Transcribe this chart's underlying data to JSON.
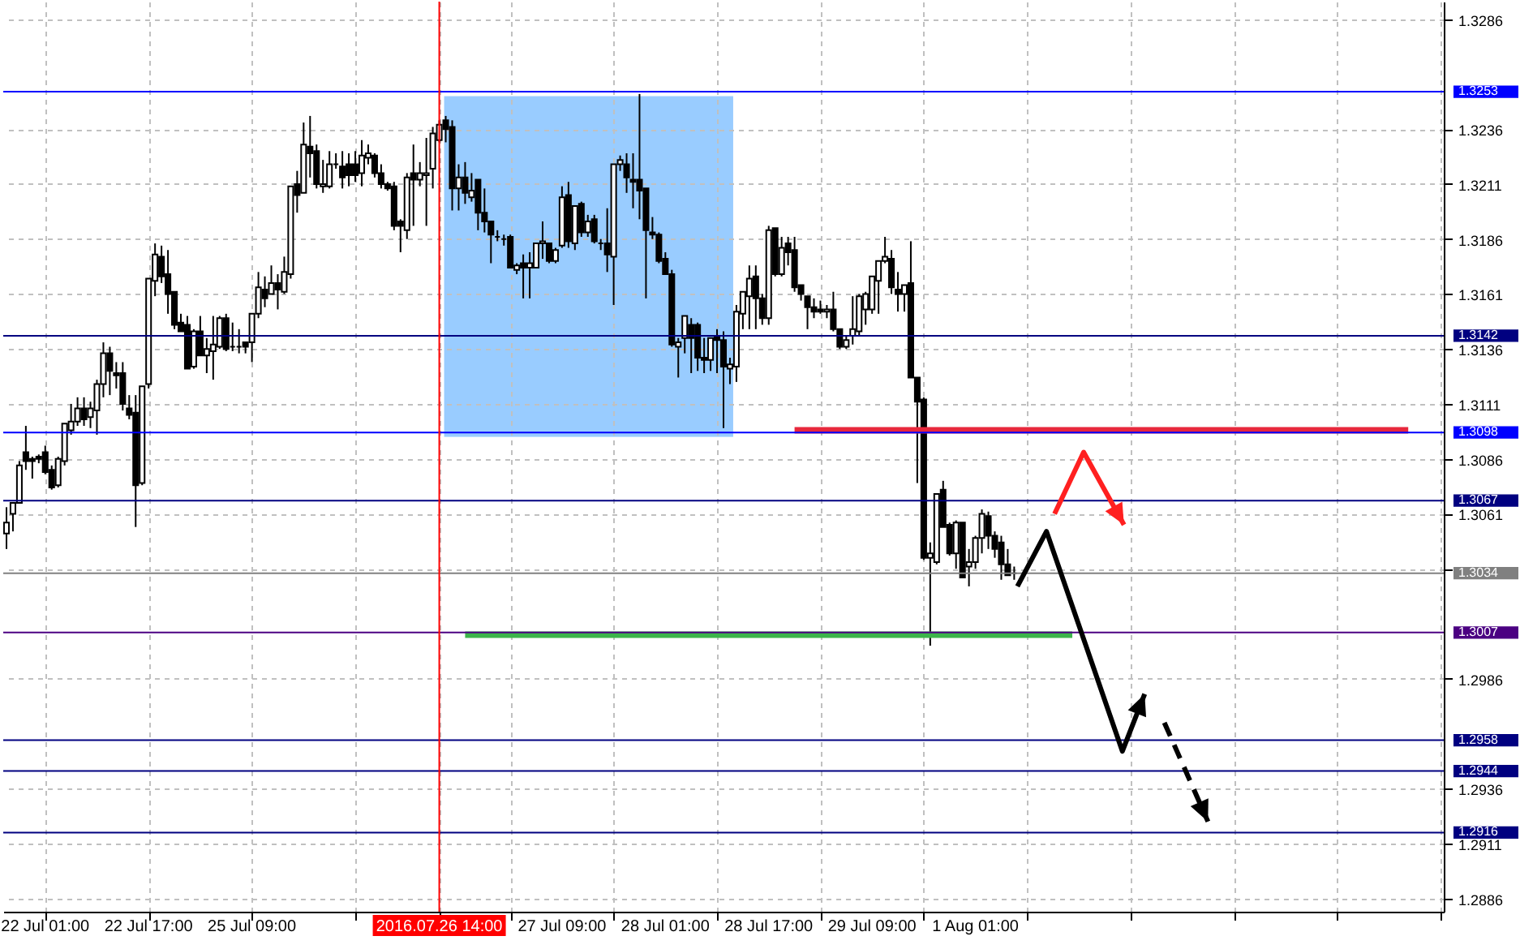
{
  "chart_data": {
    "type": "candlestick",
    "categories": [
      null,
      null,
      null,
      null,
      null,
      null,
      "22 Jul 01:00",
      null,
      null,
      null,
      null,
      null,
      null,
      null,
      null,
      null,
      null,
      null,
      null,
      null,
      null,
      null,
      "22 Jul 17:00",
      null,
      null,
      null,
      null,
      null,
      null,
      null,
      null,
      null,
      null,
      null,
      null,
      null,
      null,
      null,
      "25 Jul 09:00",
      null,
      null,
      null,
      null,
      null,
      null,
      null,
      null,
      null,
      null,
      null,
      null,
      null,
      null,
      null,
      null,
      null,
      null,
      null,
      null,
      null,
      null,
      null,
      null,
      null,
      null,
      null,
      null,
      "2016.07.26 14:00",
      null,
      null,
      null,
      null,
      null,
      null,
      null,
      null,
      null,
      null,
      null,
      null,
      null,
      null,
      null,
      null,
      null,
      null,
      "27 Jul 09:00",
      null,
      null,
      null,
      null,
      null,
      null,
      null,
      null,
      null,
      null,
      null,
      null,
      null,
      null,
      null,
      "28 Jul 01:00",
      null,
      null,
      null,
      null,
      null,
      null,
      null,
      null,
      null,
      null,
      null,
      null,
      null,
      null,
      null,
      "28 Jul 17:00",
      null,
      null,
      null,
      null,
      null,
      null,
      null,
      null,
      null,
      null,
      null,
      null,
      null,
      null,
      null,
      "29 Jul 09:00",
      null,
      null,
      null,
      null,
      null,
      null,
      null,
      null,
      null,
      null,
      null,
      null,
      null,
      null,
      null,
      "1 Aug 01:00",
      null,
      null,
      null,
      null,
      null,
      null,
      null,
      null,
      null,
      null,
      null,
      null,
      null,
      null,
      null,
      null,
      null,
      null,
      null,
      null,
      null,
      null,
      null,
      null,
      null,
      null,
      null,
      null,
      null,
      null,
      null,
      null,
      null,
      null,
      null,
      null,
      null,
      null,
      null,
      null,
      null,
      null,
      null,
      null,
      null,
      null,
      null,
      null,
      null,
      null,
      null,
      null,
      null,
      null,
      null,
      null,
      null,
      null,
      null,
      null,
      null,
      null,
      null,
      null,
      null,
      null,
      null,
      null,
      null,
      null,
      null,
      null
    ],
    "ohlc": [
      [
        1.3052,
        1.3064,
        1.3045,
        1.3057
      ],
      [
        1.3061,
        1.3066,
        1.3053,
        1.3066
      ],
      [
        1.3066,
        1.3085,
        1.3066,
        1.3083
      ],
      [
        1.3089,
        1.3101,
        1.3081,
        1.3085
      ],
      [
        1.3086,
        1.3087,
        1.3077,
        1.3085
      ],
      [
        1.3087,
        1.3088,
        1.3084,
        1.3086
      ],
      [
        1.3089,
        1.3092,
        1.3079,
        1.308
      ],
      [
        1.3081,
        1.3083,
        1.3072,
        1.3073
      ],
      [
        1.3074,
        1.3087,
        1.3073,
        1.3086
      ],
      [
        1.3085,
        1.3102,
        1.3083,
        1.3102
      ],
      [
        1.3099,
        1.3111,
        1.3097,
        1.3103
      ],
      [
        1.3103,
        1.3114,
        1.3101,
        1.3109
      ],
      [
        1.3109,
        1.3114,
        1.3101,
        1.3104
      ],
      [
        1.3105,
        1.3112,
        1.31,
        1.3109
      ],
      [
        1.3108,
        1.3122,
        1.3097,
        1.312
      ],
      [
        1.312,
        1.3139,
        1.3114,
        1.3134
      ],
      [
        1.3134,
        1.3137,
        1.3115,
        1.3126
      ],
      [
        1.3125,
        1.313,
        1.3118,
        1.3124
      ],
      [
        1.3125,
        1.313,
        1.3108,
        1.3111
      ],
      [
        1.3109,
        1.3115,
        1.3104,
        1.3106
      ],
      [
        1.3107,
        1.3115,
        1.3055,
        1.3074
      ],
      [
        1.3075,
        1.3119,
        1.3074,
        1.3119
      ],
      [
        1.312,
        1.3168,
        1.3118,
        1.3168
      ],
      [
        1.3167,
        1.3184,
        1.316,
        1.3179
      ],
      [
        1.3178,
        1.3183,
        1.3166,
        1.3169
      ],
      [
        1.317,
        1.3181,
        1.3152,
        1.3161
      ],
      [
        1.3162,
        1.3162,
        1.3145,
        1.3147
      ],
      [
        1.3148,
        1.3152,
        1.3144,
        1.3144
      ],
      [
        1.3147,
        1.3151,
        1.3127,
        1.3127
      ],
      [
        1.3128,
        1.3145,
        1.3127,
        1.3144
      ],
      [
        1.3144,
        1.3151,
        1.3133,
        1.3133
      ],
      [
        1.3133,
        1.3141,
        1.3125,
        1.3136
      ],
      [
        1.3135,
        1.3151,
        1.3122,
        1.3138
      ],
      [
        1.3137,
        1.3151,
        1.3136,
        1.315
      ],
      [
        1.315,
        1.3152,
        1.3135,
        1.3136
      ],
      [
        1.3137,
        1.3148,
        1.3135,
        1.3137
      ],
      [
        1.3137,
        1.3145,
        1.3134,
        1.3137
      ],
      [
        1.3139,
        1.3139,
        1.3134,
        1.3137
      ],
      [
        1.3139,
        1.3152,
        1.313,
        1.3152
      ],
      [
        1.3152,
        1.3171,
        1.315,
        1.3164
      ],
      [
        1.3163,
        1.3169,
        1.3155,
        1.3159
      ],
      [
        1.3161,
        1.3174,
        1.3161,
        1.3166
      ],
      [
        1.3166,
        1.317,
        1.3154,
        1.3163
      ],
      [
        1.3162,
        1.3178,
        1.3161,
        1.3171
      ],
      [
        1.317,
        1.321,
        1.3168,
        1.321
      ],
      [
        1.3211,
        1.3217,
        1.3198,
        1.3206
      ],
      [
        1.3207,
        1.3239,
        1.3207,
        1.3229
      ],
      [
        1.3228,
        1.3242,
        1.3214,
        1.3225
      ],
      [
        1.3226,
        1.3229,
        1.3209,
        1.3211
      ],
      [
        1.321,
        1.3222,
        1.3207,
        1.3211
      ],
      [
        1.321,
        1.3226,
        1.3209,
        1.322
      ],
      [
        1.322,
        1.3225,
        1.3218,
        1.322
      ],
      [
        1.3219,
        1.3226,
        1.3209,
        1.3214
      ],
      [
        1.322,
        1.3225,
        1.321,
        1.3215
      ],
      [
        1.322,
        1.3226,
        1.3212,
        1.3215
      ],
      [
        1.3216,
        1.3231,
        1.321,
        1.3224
      ],
      [
        1.3223,
        1.3229,
        1.322,
        1.3225
      ],
      [
        1.3224,
        1.3225,
        1.3214,
        1.3216
      ],
      [
        1.3216,
        1.322,
        1.3209,
        1.3211
      ],
      [
        1.3211,
        1.3212,
        1.3208,
        1.3209
      ],
      [
        1.321,
        1.3212,
        1.319,
        1.3192
      ],
      [
        1.3194,
        1.3195,
        1.318,
        1.3192
      ],
      [
        1.319,
        1.3216,
        1.3186,
        1.3214
      ],
      [
        1.3216,
        1.3229,
        1.3192,
        1.3213
      ],
      [
        1.3213,
        1.3221,
        1.321,
        1.3216
      ],
      [
        1.3215,
        1.3232,
        1.3192,
        1.3216
      ],
      [
        1.3218,
        1.3237,
        1.3209,
        1.3234
      ],
      [
        1.3231,
        1.324,
        1.323,
        1.3238
      ],
      [
        1.324,
        1.3242,
        1.323,
        1.3236
      ],
      [
        1.3237,
        1.324,
        1.3199,
        1.3209
      ],
      [
        1.3209,
        1.322,
        1.3199,
        1.3214
      ],
      [
        1.3214,
        1.3221,
        1.3202,
        1.3207
      ],
      [
        1.3205,
        1.3216,
        1.3203,
        1.3208
      ],
      [
        1.3213,
        1.3213,
        1.319,
        1.3198
      ],
      [
        1.3198,
        1.3209,
        1.3189,
        1.3194
      ],
      [
        1.3194,
        1.3194,
        1.3175,
        1.3188
      ],
      [
        1.3187,
        1.319,
        1.3185,
        1.3187
      ],
      [
        1.3186,
        1.3188,
        1.3183,
        1.3186
      ],
      [
        1.3187,
        1.3188,
        1.3173,
        1.3173
      ],
      [
        1.3172,
        1.3175,
        1.317,
        1.3174
      ],
      [
        1.3175,
        1.3179,
        1.3159,
        1.3173
      ],
      [
        1.3173,
        1.318,
        1.3159,
        1.3175
      ],
      [
        1.3173,
        1.3184,
        1.3173,
        1.3184
      ],
      [
        1.3184,
        1.3194,
        1.3177,
        1.3185
      ],
      [
        1.3184,
        1.3184,
        1.3175,
        1.3176
      ],
      [
        1.3176,
        1.3182,
        1.3175,
        1.3181
      ],
      [
        1.3183,
        1.321,
        1.3182,
        1.3205
      ],
      [
        1.3206,
        1.3212,
        1.3182,
        1.3185
      ],
      [
        1.3184,
        1.3201,
        1.3181,
        1.3201
      ],
      [
        1.3202,
        1.3203,
        1.3187,
        1.3189
      ],
      [
        1.3189,
        1.3197,
        1.3187,
        1.3194
      ],
      [
        1.3195,
        1.3197,
        1.3184,
        1.3185
      ],
      [
        1.3184,
        1.3186,
        1.3181,
        1.3184
      ],
      [
        1.3184,
        1.32,
        1.3171,
        1.3179
      ],
      [
        1.3178,
        1.322,
        1.3156,
        1.322
      ],
      [
        1.322,
        1.3224,
        1.3217,
        1.3222
      ],
      [
        1.322,
        1.3225,
        1.3207,
        1.3214
      ],
      [
        1.3213,
        1.3225,
        1.32,
        1.3212
      ],
      [
        1.3213,
        1.3252,
        1.3195,
        1.3208
      ],
      [
        1.3209,
        1.3209,
        1.3159,
        1.319
      ],
      [
        1.3189,
        1.3196,
        1.3186,
        1.3188
      ],
      [
        1.3188,
        1.3189,
        1.3175,
        1.3176
      ],
      [
        1.3177,
        1.318,
        1.317,
        1.317
      ],
      [
        1.317,
        1.3172,
        1.3137,
        1.3138
      ],
      [
        1.3137,
        1.3141,
        1.3123,
        1.3139
      ],
      [
        1.3141,
        1.3151,
        1.3134,
        1.3151
      ],
      [
        1.3147,
        1.315,
        1.3125,
        1.3141
      ],
      [
        1.3147,
        1.3148,
        1.3126,
        1.3132
      ],
      [
        1.3132,
        1.3141,
        1.3125,
        1.3131
      ],
      [
        1.3131,
        1.3141,
        1.3126,
        1.3141
      ],
      [
        1.3142,
        1.3145,
        1.3125,
        1.314
      ],
      [
        1.314,
        1.3144,
        1.31,
        1.3128
      ],
      [
        1.3127,
        1.3132,
        1.312,
        1.3129
      ],
      [
        1.3128,
        1.3156,
        1.3121,
        1.3153
      ],
      [
        1.3152,
        1.3162,
        1.3145,
        1.3162
      ],
      [
        1.316,
        1.3174,
        1.3145,
        1.3168
      ],
      [
        1.3169,
        1.3174,
        1.3145,
        1.3159
      ],
      [
        1.3159,
        1.3161,
        1.3147,
        1.315
      ],
      [
        1.315,
        1.3192,
        1.3147,
        1.319
      ],
      [
        1.3191,
        1.3191,
        1.3169,
        1.317
      ],
      [
        1.317,
        1.3187,
        1.3169,
        1.3182
      ],
      [
        1.3184,
        1.3187,
        1.3174,
        1.318
      ],
      [
        1.3181,
        1.3187,
        1.3162,
        1.3164
      ],
      [
        1.3165,
        1.3165,
        1.3158,
        1.3161
      ],
      [
        1.316,
        1.316,
        1.3145,
        1.3155
      ],
      [
        1.3155,
        1.3159,
        1.315,
        1.3153
      ],
      [
        1.3154,
        1.3158,
        1.3152,
        1.3153
      ],
      [
        1.3153,
        1.3156,
        1.315,
        1.3154
      ],
      [
        1.3154,
        1.3162,
        1.3144,
        1.3145
      ],
      [
        1.3145,
        1.3145,
        1.3136,
        1.3137
      ],
      [
        1.3137,
        1.3142,
        1.3136,
        1.314
      ],
      [
        1.3142,
        1.316,
        1.3138,
        1.3145
      ],
      [
        1.3144,
        1.3161,
        1.3142,
        1.316
      ],
      [
        1.3154,
        1.3162,
        1.3147,
        1.3161
      ],
      [
        1.3154,
        1.3169,
        1.3152,
        1.3169
      ],
      [
        1.3167,
        1.3176,
        1.3152,
        1.3176
      ],
      [
        1.3176,
        1.3187,
        1.3175,
        1.3178
      ],
      [
        1.3177,
        1.3181,
        1.3161,
        1.3164
      ],
      [
        1.3163,
        1.3171,
        1.3153,
        1.3161
      ],
      [
        1.3161,
        1.3165,
        1.3153,
        1.3165
      ],
      [
        1.3166,
        1.3185,
        1.3123,
        1.3123
      ],
      [
        1.3123,
        1.3123,
        1.3075,
        1.3112
      ],
      [
        1.3113,
        1.3114,
        1.304,
        1.3041
      ],
      [
        1.3041,
        1.3048,
        1.3001,
        1.3043
      ],
      [
        1.3039,
        1.307,
        1.3038,
        1.307
      ],
      [
        1.3072,
        1.3076,
        1.3055,
        1.3055
      ],
      [
        1.3056,
        1.3057,
        1.3042,
        1.3043
      ],
      [
        1.3043,
        1.3058,
        1.3036,
        1.3057
      ],
      [
        1.3057,
        1.3057,
        1.3032,
        1.3032
      ],
      [
        1.3037,
        1.3045,
        1.3028,
        1.3039
      ],
      [
        1.3039,
        1.3051,
        1.3036,
        1.305
      ],
      [
        1.305,
        1.3063,
        1.3043,
        1.3061
      ],
      [
        1.306,
        1.3062,
        1.3045,
        1.3051
      ],
      [
        1.3051,
        1.3053,
        1.3041,
        1.3045
      ],
      [
        1.3048,
        1.3051,
        1.3031,
        1.3038
      ],
      [
        1.3038,
        1.3045,
        1.3033,
        1.3033
      ],
      [
        1.3034,
        1.3037,
        1.3031,
        1.3034
      ],
      null,
      null,
      null,
      null,
      null,
      null,
      null,
      null,
      null,
      null,
      null,
      null,
      null,
      null,
      null,
      null,
      null,
      null,
      null,
      null,
      null,
      null,
      null,
      null,
      null,
      null,
      null,
      null,
      null,
      null,
      null,
      null,
      null,
      null,
      null,
      null,
      null,
      null,
      null,
      null,
      null,
      null,
      null,
      null,
      null,
      null,
      null,
      null,
      null,
      null,
      null,
      null,
      null,
      null,
      null,
      null,
      null,
      null,
      null,
      null,
      null,
      null,
      null,
      null,
      null,
      null
    ],
    "series": [
      {
        "type": "line",
        "color": "#e8283c",
        "values": [
          null,
          null,
          null,
          null,
          null,
          null,
          null,
          null,
          null,
          null,
          null,
          null,
          null,
          null,
          null,
          null,
          null,
          null,
          null,
          null,
          null,
          null,
          null,
          null,
          null,
          null,
          null,
          null,
          null,
          null,
          null,
          null,
          null,
          null,
          null,
          null,
          null,
          null,
          null,
          null,
          null,
          null,
          null,
          null,
          null,
          null,
          null,
          null,
          null,
          null,
          null,
          null,
          null,
          null,
          null,
          null,
          null,
          null,
          null,
          null,
          null,
          null,
          null,
          null,
          null,
          null,
          null,
          null,
          null,
          null,
          null,
          null,
          null,
          null,
          null,
          null,
          null,
          null,
          null,
          null,
          null,
          null,
          null,
          null,
          null,
          null,
          null,
          null,
          null,
          null,
          null,
          null,
          null,
          null,
          null,
          null,
          null,
          null,
          null,
          null,
          null,
          null,
          null,
          null,
          null,
          null,
          null,
          null,
          null,
          null,
          null,
          null,
          null,
          null,
          null,
          null,
          null,
          null,
          null,
          null,
          null,
          null,
          1.3099,
          1.3099,
          1.3099,
          1.3099,
          1.3099,
          1.3099,
          1.3099,
          1.3099,
          1.3099,
          1.3099,
          1.3099,
          1.3099,
          1.3099,
          1.3099,
          1.3099,
          1.3099,
          1.3099,
          1.3099,
          1.3099,
          1.3099,
          1.3099,
          1.3099,
          1.3099,
          1.3099,
          1.3099,
          1.3099,
          1.3099,
          1.3099,
          1.3099,
          1.3099,
          1.3099,
          1.3099,
          1.3099,
          1.3099,
          1.3099,
          1.3099,
          1.3099,
          1.3099,
          1.3099,
          1.3099,
          1.3099,
          1.3099,
          1.3099,
          1.3099,
          1.3099,
          1.3099,
          1.3099,
          1.3099,
          1.3099,
          1.3099,
          1.3099,
          1.3099,
          1.3099,
          1.3099,
          1.3099,
          1.3099,
          1.3099,
          1.3099,
          1.3099,
          1.3099,
          1.3099,
          1.3099,
          1.3099,
          1.3099,
          1.3099,
          1.3099,
          1.3099,
          1.3099,
          1.3099,
          1.3099,
          1.3099,
          1.3099,
          1.3099,
          1.3099,
          1.3099,
          1.3099,
          1.3099,
          1.3099,
          1.3099,
          1.3099,
          1.3099,
          1.3099,
          1.3099,
          1.3099,
          1.3099,
          1.3099,
          1.3099,
          1.3099,
          1.3099,
          1.3099,
          1.3099,
          1.3099,
          1.3099,
          1.3099,
          1.3099,
          1.3099,
          null,
          null,
          null,
          null,
          null
        ]
      },
      {
        "type": "line",
        "color": "#3cb44b",
        "values": [
          null,
          null,
          null,
          null,
          null,
          null,
          null,
          null,
          null,
          null,
          null,
          null,
          null,
          null,
          null,
          null,
          null,
          null,
          null,
          null,
          null,
          null,
          null,
          null,
          null,
          null,
          null,
          null,
          null,
          null,
          null,
          null,
          null,
          null,
          null,
          null,
          null,
          null,
          null,
          null,
          null,
          null,
          null,
          null,
          null,
          null,
          null,
          null,
          null,
          null,
          null,
          null,
          null,
          null,
          null,
          null,
          null,
          null,
          null,
          null,
          null,
          null,
          null,
          null,
          null,
          null,
          null,
          null,
          null,
          null,
          null,
          1.3006,
          1.3006,
          1.3006,
          1.3006,
          1.3006,
          1.3006,
          1.3006,
          1.3006,
          1.3006,
          1.3006,
          1.3006,
          1.3006,
          1.3006,
          1.3006,
          1.3006,
          1.3006,
          1.3006,
          1.3006,
          1.3006,
          1.3006,
          1.3006,
          1.3006,
          1.3006,
          1.3006,
          1.3006,
          1.3006,
          1.3006,
          1.3006,
          1.3006,
          1.3006,
          1.3006,
          1.3006,
          1.3006,
          1.3006,
          1.3006,
          1.3006,
          1.3006,
          1.3006,
          1.3006,
          1.3006,
          1.3006,
          1.3006,
          1.3006,
          1.3006,
          1.3006,
          1.3006,
          1.3006,
          1.3006,
          1.3006,
          1.3006,
          1.3006,
          1.3006,
          1.3006,
          1.3006,
          1.3006,
          1.3006,
          1.3006,
          1.3006,
          1.3006,
          1.3006,
          1.3006,
          1.3006,
          1.3006,
          1.3006,
          1.3006,
          1.3006,
          1.3006,
          1.3006,
          1.3006,
          1.3006,
          1.3006,
          1.3006,
          1.3006,
          1.3006,
          1.3006,
          1.3006,
          1.3006,
          1.3006,
          1.3006,
          1.3006,
          1.3006,
          1.3006,
          1.3006,
          1.3006,
          1.3006,
          1.3006,
          1.3006,
          1.3006,
          1.3006,
          1.3006,
          1.3006,
          1.3006,
          1.3006,
          1.3006,
          1.3006,
          null,
          null,
          null,
          null,
          null,
          null,
          null,
          null,
          null,
          null,
          null,
          null,
          null,
          null,
          null,
          null,
          null,
          null,
          null,
          null,
          null,
          null,
          null,
          null,
          null,
          null,
          null,
          null,
          null,
          null,
          null,
          null,
          null,
          null,
          null,
          null,
          null,
          null,
          null,
          null,
          null,
          null,
          null,
          null,
          null,
          null,
          null,
          null,
          null,
          null,
          null,
          null,
          null,
          null,
          null,
          null,
          null
        ]
      }
    ],
    "ylim": [
      1.288,
      1.3294
    ],
    "yticks": [
      1.2886,
      1.2911,
      1.2936,
      1.2986,
      {
        "value": 1.3036,
        "label": null
      },
      1.3061,
      1.3086,
      1.3111,
      1.3136,
      1.3161,
      1.3186,
      1.3211,
      1.3236,
      1.3286
    ],
    "grid": true,
    "ref_lines": [
      {
        "axis": "y",
        "value": 1.3253,
        "label": "1.3253",
        "color": "#0000ff"
      },
      {
        "axis": "y",
        "value": 1.3142,
        "label": "1.3142",
        "color": "#000080"
      },
      {
        "axis": "y",
        "value": 1.3098,
        "label": "1.3098",
        "color": "#0000ff"
      },
      {
        "axis": "y",
        "value": 1.3067,
        "label": "1.3067",
        "color": "#000080"
      },
      {
        "axis": "y",
        "value": 1.3034,
        "label": "1.3034",
        "color": "#808080"
      },
      {
        "axis": "y",
        "value": 1.3007,
        "label": "1.3007",
        "color": "#4b0082"
      },
      {
        "axis": "y",
        "value": 1.2958,
        "label": "1.2958",
        "color": "#000080"
      },
      {
        "axis": "y",
        "value": 1.2944,
        "label": "1.2944",
        "color": "#000080"
      },
      {
        "axis": "y",
        "value": 1.2916,
        "label": "1.2916",
        "color": "#000080"
      },
      {
        "axis": "x",
        "value": "2016.07.26 14:00",
        "color": "#ff0000"
      }
    ]
  }
}
